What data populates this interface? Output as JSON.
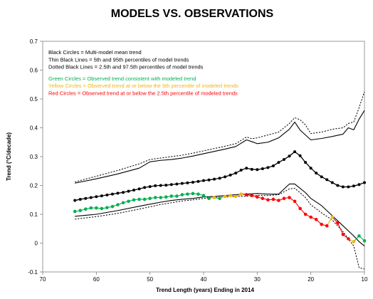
{
  "chart_data": {
    "type": "line",
    "title": "MODELS VS. OBSERVATIONS",
    "xlabel": "Trend Length (years) Ending in 2014",
    "ylabel": "Trend (°C/decade)",
    "xlim": [
      70,
      10
    ],
    "ylim": [
      -0.1,
      0.7
    ],
    "x_ticks": [
      70,
      60,
      50,
      40,
      30,
      20,
      10
    ],
    "y_ticks": [
      -0.1,
      0,
      0.1,
      0.2,
      0.3,
      0.4,
      0.5,
      0.6,
      0.7
    ],
    "y_tick_labels": [
      "-0.1",
      "0",
      "0.1",
      "0.2",
      "0.3",
      "0.4",
      "0.5",
      "0.6",
      "0.7"
    ],
    "grid": false,
    "legend": {
      "placement": "top-left",
      "entries": [
        {
          "text": "Black Circles = Multi-model mean trend",
          "color": "#000000"
        },
        {
          "text": "Thin Black Lines = 5th and 95th percentiles of model trends",
          "color": "#000000"
        },
        {
          "text": "Dotted Black Lines = 2.5th and 97.5th percentiles of model trends",
          "color": "#000000"
        },
        {
          "text": "Green Circles = Observed trend consistent with modeled trend",
          "color": "#00b050"
        },
        {
          "text": "Yellow Circles = Observed trend at or below the 5th percentile of modeled trends",
          "color": "#f2b705"
        },
        {
          "text": "Red Circles = Observed trend at or below the 2.5th percentile of modeled trends",
          "color": "#ff0000"
        }
      ]
    },
    "colors": {
      "green": "#00b050",
      "yellow": "#f2b705",
      "red": "#ff0000",
      "black": "#000000"
    },
    "series": [
      {
        "role": "mean",
        "x": [
          64,
          63,
          62,
          61,
          60,
          59,
          58,
          57,
          56,
          55,
          54,
          53,
          52,
          51,
          50,
          49,
          48,
          47,
          46,
          45,
          44,
          43,
          42,
          41,
          40,
          39,
          38,
          37,
          36,
          35,
          34,
          33,
          32,
          31,
          30,
          29,
          28,
          27,
          26,
          25,
          24,
          23,
          22,
          21,
          20,
          19,
          18,
          17,
          16,
          15,
          14,
          13,
          12,
          11,
          10
        ],
        "values": [
          0.148,
          0.152,
          0.155,
          0.158,
          0.161,
          0.164,
          0.167,
          0.17,
          0.173,
          0.176,
          0.18,
          0.184,
          0.188,
          0.193,
          0.196,
          0.199,
          0.2,
          0.201,
          0.203,
          0.205,
          0.207,
          0.209,
          0.211,
          0.214,
          0.217,
          0.219,
          0.222,
          0.225,
          0.23,
          0.236,
          0.243,
          0.253,
          0.26,
          0.256,
          0.255,
          0.258,
          0.262,
          0.268,
          0.28,
          0.29,
          0.302,
          0.317,
          0.303,
          0.28,
          0.26,
          0.243,
          0.23,
          0.22,
          0.21,
          0.2,
          0.195,
          0.195,
          0.198,
          0.203,
          0.21
        ]
      },
      {
        "role": "p95",
        "x": [
          64,
          60,
          56,
          52,
          50,
          48,
          46,
          44,
          42,
          40,
          38,
          36,
          34,
          32,
          31,
          30,
          28,
          26,
          24,
          23,
          22,
          21,
          20,
          18,
          16,
          14,
          13,
          12,
          11,
          10
        ],
        "values": [
          0.208,
          0.223,
          0.24,
          0.26,
          0.282,
          0.287,
          0.29,
          0.295,
          0.302,
          0.31,
          0.318,
          0.326,
          0.335,
          0.358,
          0.352,
          0.345,
          0.35,
          0.365,
          0.395,
          0.42,
          0.392,
          0.375,
          0.358,
          0.363,
          0.37,
          0.378,
          0.4,
          0.393,
          0.43,
          0.46
        ]
      },
      {
        "role": "p975",
        "x": [
          64,
          60,
          56,
          52,
          50,
          48,
          46,
          44,
          42,
          40,
          38,
          36,
          34,
          32,
          31,
          30,
          28,
          26,
          24,
          23,
          22,
          21,
          20,
          18,
          16,
          14,
          13,
          12,
          11,
          10
        ],
        "values": [
          0.212,
          0.232,
          0.252,
          0.275,
          0.29,
          0.295,
          0.3,
          0.305,
          0.312,
          0.32,
          0.328,
          0.336,
          0.345,
          0.368,
          0.362,
          0.365,
          0.375,
          0.385,
          0.415,
          0.435,
          0.428,
          0.41,
          0.38,
          0.385,
          0.395,
          0.4,
          0.415,
          0.42,
          0.47,
          0.525
        ]
      },
      {
        "role": "p5",
        "x": [
          64,
          60,
          56,
          52,
          50,
          48,
          46,
          44,
          42,
          40,
          38,
          36,
          34,
          32,
          30,
          28,
          26,
          24,
          23,
          22,
          21,
          20,
          18,
          16,
          14,
          12,
          11,
          10
        ],
        "values": [
          0.093,
          0.1,
          0.113,
          0.128,
          0.135,
          0.142,
          0.148,
          0.152,
          0.155,
          0.16,
          0.162,
          0.165,
          0.168,
          0.17,
          0.172,
          0.17,
          0.17,
          0.205,
          0.205,
          0.19,
          0.175,
          0.155,
          0.13,
          0.095,
          0.06,
          0.025,
          0.005,
          -0.01
        ]
      },
      {
        "role": "p2.5",
        "x": [
          64,
          60,
          56,
          52,
          50,
          48,
          46,
          44,
          42,
          40,
          38,
          36,
          34,
          32,
          30,
          28,
          26,
          24,
          23,
          22,
          21,
          20,
          18,
          16,
          14,
          12,
          11,
          10
        ],
        "values": [
          0.083,
          0.092,
          0.103,
          0.118,
          0.126,
          0.134,
          0.14,
          0.146,
          0.15,
          0.155,
          0.158,
          0.16,
          0.162,
          0.163,
          0.165,
          0.165,
          0.168,
          0.188,
          0.19,
          0.175,
          0.158,
          0.133,
          0.105,
          0.08,
          0.04,
          -0.01,
          -0.085,
          -0.09
        ]
      },
      {
        "role": "observed",
        "x": [
          64,
          63,
          62,
          61,
          60,
          59,
          58,
          57,
          56,
          55,
          54,
          53,
          52,
          51,
          50,
          49,
          48,
          47,
          46,
          45,
          44,
          43,
          42,
          41,
          40,
          39,
          38,
          37,
          36,
          35,
          34,
          33,
          32,
          31,
          30,
          29,
          28,
          27,
          26,
          25,
          24,
          23,
          22,
          21,
          20,
          19,
          18,
          17,
          16,
          15,
          14,
          13,
          12,
          11,
          10
        ],
        "values": [
          0.11,
          0.113,
          0.118,
          0.122,
          0.122,
          0.12,
          0.123,
          0.127,
          0.133,
          0.14,
          0.145,
          0.15,
          0.152,
          0.152,
          0.155,
          0.158,
          0.158,
          0.16,
          0.163,
          0.163,
          0.168,
          0.17,
          0.172,
          0.17,
          0.165,
          0.155,
          0.158,
          0.155,
          0.162,
          0.165,
          0.162,
          0.17,
          0.168,
          0.165,
          0.16,
          0.155,
          0.15,
          0.152,
          0.148,
          0.155,
          0.158,
          0.145,
          0.12,
          0.1,
          0.09,
          0.082,
          0.065,
          0.06,
          0.09,
          0.07,
          0.03,
          0.015,
          0.005,
          0.025,
          0.008
        ],
        "point_colors": [
          "green",
          "green",
          "green",
          "green",
          "green",
          "green",
          "green",
          "green",
          "green",
          "green",
          "green",
          "green",
          "green",
          "green",
          "green",
          "green",
          "green",
          "green",
          "green",
          "green",
          "green",
          "green",
          "green",
          "green",
          "green",
          "green",
          "yellow",
          "green",
          "yellow",
          "yellow",
          "yellow",
          "yellow",
          "red",
          "red",
          "red",
          "red",
          "red",
          "red",
          "red",
          "red",
          "red",
          "red",
          "red",
          "red",
          "red",
          "red",
          "red",
          "red",
          "yellow",
          "red",
          "red",
          "red",
          "yellow",
          "green",
          "green"
        ]
      }
    ]
  }
}
